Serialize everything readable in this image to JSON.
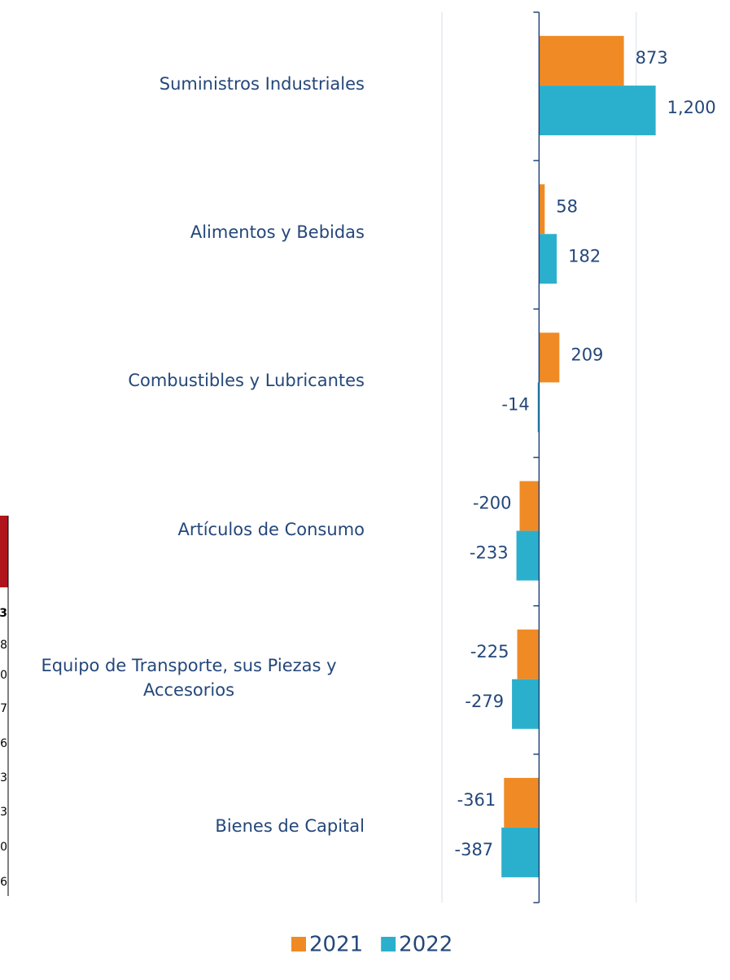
{
  "chart_data": {
    "type": "bar",
    "orientation": "horizontal",
    "categories": [
      "Suministros Industriales",
      "Alimentos y Bebidas",
      "Combustibles y Lubricantes",
      "Artículos de Consumo",
      "Equipo de Transporte, sus Piezas y Accesorios",
      "Bienes de Capital"
    ],
    "series": [
      {
        "name": "2021",
        "color": "#f08a24",
        "values": [
          873,
          58,
          209,
          -200,
          -225,
          -361
        ]
      },
      {
        "name": "2022",
        "color": "#2ab0cc",
        "values": [
          1200,
          182,
          -14,
          -233,
          -279,
          -387
        ],
        "value_labels": [
          "1,200",
          "182",
          "-14",
          "-233",
          "-279",
          "-387"
        ]
      }
    ],
    "xlim": [
      -1000,
      1940
    ],
    "xticks": [
      -1000,
      0,
      1000
    ],
    "grid": true,
    "legend": "bottom"
  },
  "side_table": {
    "cells": [
      "3",
      "8",
      "0",
      "7",
      "6",
      "3",
      "3",
      "0",
      "6"
    ]
  }
}
